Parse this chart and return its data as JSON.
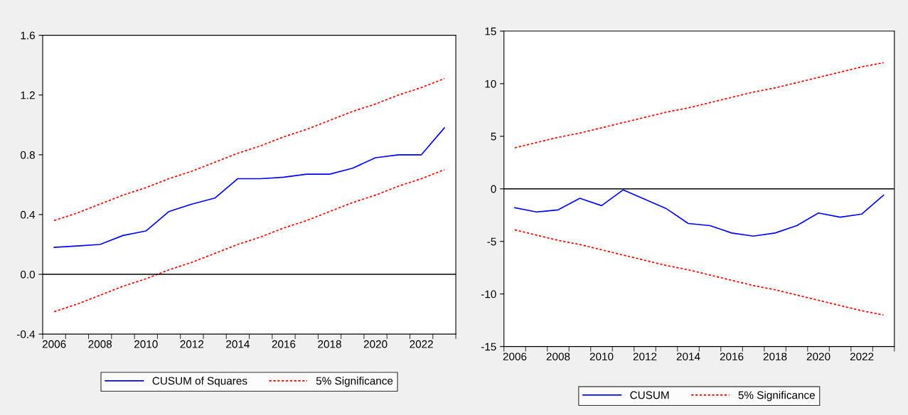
{
  "chart_data": [
    {
      "type": "line",
      "categories": [
        "2006",
        null,
        "2008",
        null,
        "2010",
        null,
        "2012",
        null,
        "2014",
        null,
        "2016",
        null,
        "2018",
        null,
        "2020",
        null,
        "2022",
        null
      ],
      "ylim": [
        -0.4,
        1.6
      ],
      "yticks": [
        -0.4,
        {
          "value": 0,
          "label": "0.0"
        },
        0.4,
        0.8,
        1.2,
        1.6
      ],
      "grid": false,
      "legend": "bottom",
      "ref_lines": [
        {
          "axis": "y",
          "value": 0,
          "color": "#000000"
        }
      ],
      "series": [
        {
          "name": "CUSUM of Squares",
          "color": "#0000ff",
          "line_style": "solid",
          "values": [
            0.18,
            0.19,
            0.2,
            0.26,
            0.29,
            0.42,
            0.47,
            0.51,
            0.64,
            0.64,
            0.65,
            0.67,
            0.67,
            0.71,
            0.78,
            0.8,
            0.8,
            0.98
          ]
        },
        {
          "name": "5% Significance",
          "color": "#ff0000",
          "line_style": "dashed",
          "values": [
            0.36,
            0.41,
            0.47,
            0.53,
            0.58,
            0.64,
            0.69,
            0.75,
            0.81,
            0.86,
            0.92,
            0.97,
            1.03,
            1.09,
            1.14,
            1.2,
            1.25,
            1.31
          ]
        },
        {
          "color": "#ff0000",
          "line_style": "dashed",
          "values": [
            -0.25,
            -0.2,
            -0.14,
            -0.08,
            -0.03,
            0.03,
            0.08,
            0.14,
            0.2,
            0.25,
            0.31,
            0.36,
            0.42,
            0.48,
            0.53,
            0.59,
            0.64,
            0.7
          ]
        }
      ]
    },
    {
      "type": "line",
      "categories": [
        "2006",
        null,
        "2008",
        null,
        "2010",
        null,
        "2012",
        null,
        "2014",
        null,
        "2016",
        null,
        "2018",
        null,
        "2020",
        null,
        "2022",
        null
      ],
      "ylim": [
        -15,
        15
      ],
      "yticks": [
        -15,
        -10,
        -5,
        0,
        5,
        10,
        15
      ],
      "grid": false,
      "legend": "bottom",
      "ref_lines": [
        {
          "axis": "y",
          "value": 0,
          "color": "#000000"
        }
      ],
      "series": [
        {
          "name": "CUSUM",
          "color": "#0000ff",
          "line_style": "solid",
          "values": [
            -1.8,
            -2.2,
            -2.0,
            -0.9,
            -1.6,
            -0.1,
            -1.0,
            -1.9,
            -3.3,
            -3.5,
            -4.2,
            -4.5,
            -4.2,
            -3.5,
            -2.3,
            -2.7,
            -2.4,
            -0.6
          ]
        },
        {
          "name": "5% Significance",
          "color": "#ff0000",
          "line_style": "dashed",
          "values": [
            3.9,
            4.4,
            4.9,
            5.3,
            5.8,
            6.3,
            6.8,
            7.3,
            7.7,
            8.2,
            8.7,
            9.2,
            9.6,
            10.1,
            10.6,
            11.1,
            11.6,
            12.0
          ]
        },
        {
          "color": "#ff0000",
          "line_style": "dashed",
          "values": [
            -3.9,
            -4.4,
            -4.9,
            -5.3,
            -5.8,
            -6.3,
            -6.8,
            -7.3,
            -7.7,
            -8.2,
            -8.7,
            -9.2,
            -9.6,
            -10.1,
            -10.6,
            -11.1,
            -11.6,
            -12.0
          ]
        }
      ]
    }
  ]
}
